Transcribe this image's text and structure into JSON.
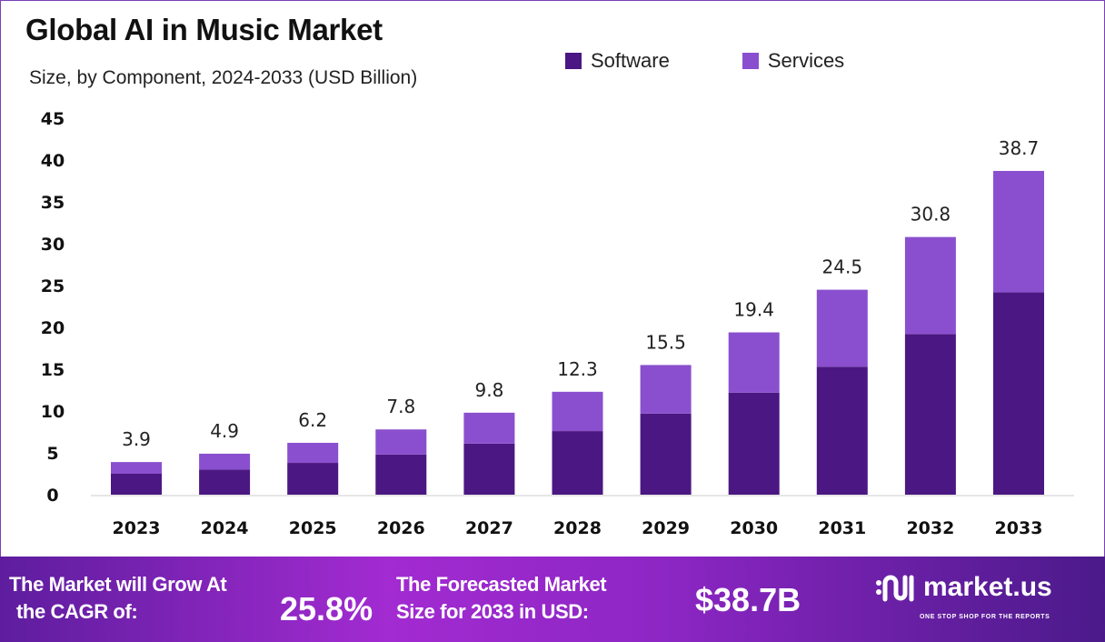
{
  "chart_data": {
    "type": "bar",
    "stacked": true,
    "title": "Global AI in Music Market",
    "subtitle": "Size, by Component, 2024-2033 (USD Billion)",
    "xlabel": "",
    "ylabel": "",
    "ylim": [
      0,
      45
    ],
    "yticks": [
      0,
      5,
      10,
      15,
      20,
      25,
      30,
      35,
      40,
      45
    ],
    "grid": false,
    "legend_position": "top-right",
    "categories": [
      "2023",
      "2024",
      "2025",
      "2026",
      "2027",
      "2028",
      "2029",
      "2030",
      "2031",
      "2032",
      "2033"
    ],
    "series": [
      {
        "name": "Software",
        "color": "#4b1782",
        "values": [
          2.5,
          3.0,
          3.8,
          4.8,
          6.1,
          7.6,
          9.7,
          12.2,
          15.3,
          19.2,
          24.2
        ]
      },
      {
        "name": "Services",
        "color": "#8a4fce",
        "values": [
          1.4,
          1.9,
          2.4,
          3.0,
          3.7,
          4.7,
          5.8,
          7.2,
          9.2,
          11.6,
          14.5
        ]
      }
    ],
    "totals": [
      "3.9",
      "4.9",
      "6.2",
      "7.8",
      "9.8",
      "12.3",
      "15.5",
      "19.4",
      "24.5",
      "30.8",
      "38.7"
    ]
  },
  "footer": {
    "cagr_line1": "The Market will Grow At",
    "cagr_line2": "the CAGR of:",
    "cagr_value": "25.8%",
    "forecast_line1": "The Forecasted Market",
    "forecast_line2": "Size for 2033 in USD:",
    "forecast_value": "$38.7B",
    "logo_text": "market.us",
    "logo_tagline": "ONE STOP SHOP FOR THE REPORTS"
  }
}
